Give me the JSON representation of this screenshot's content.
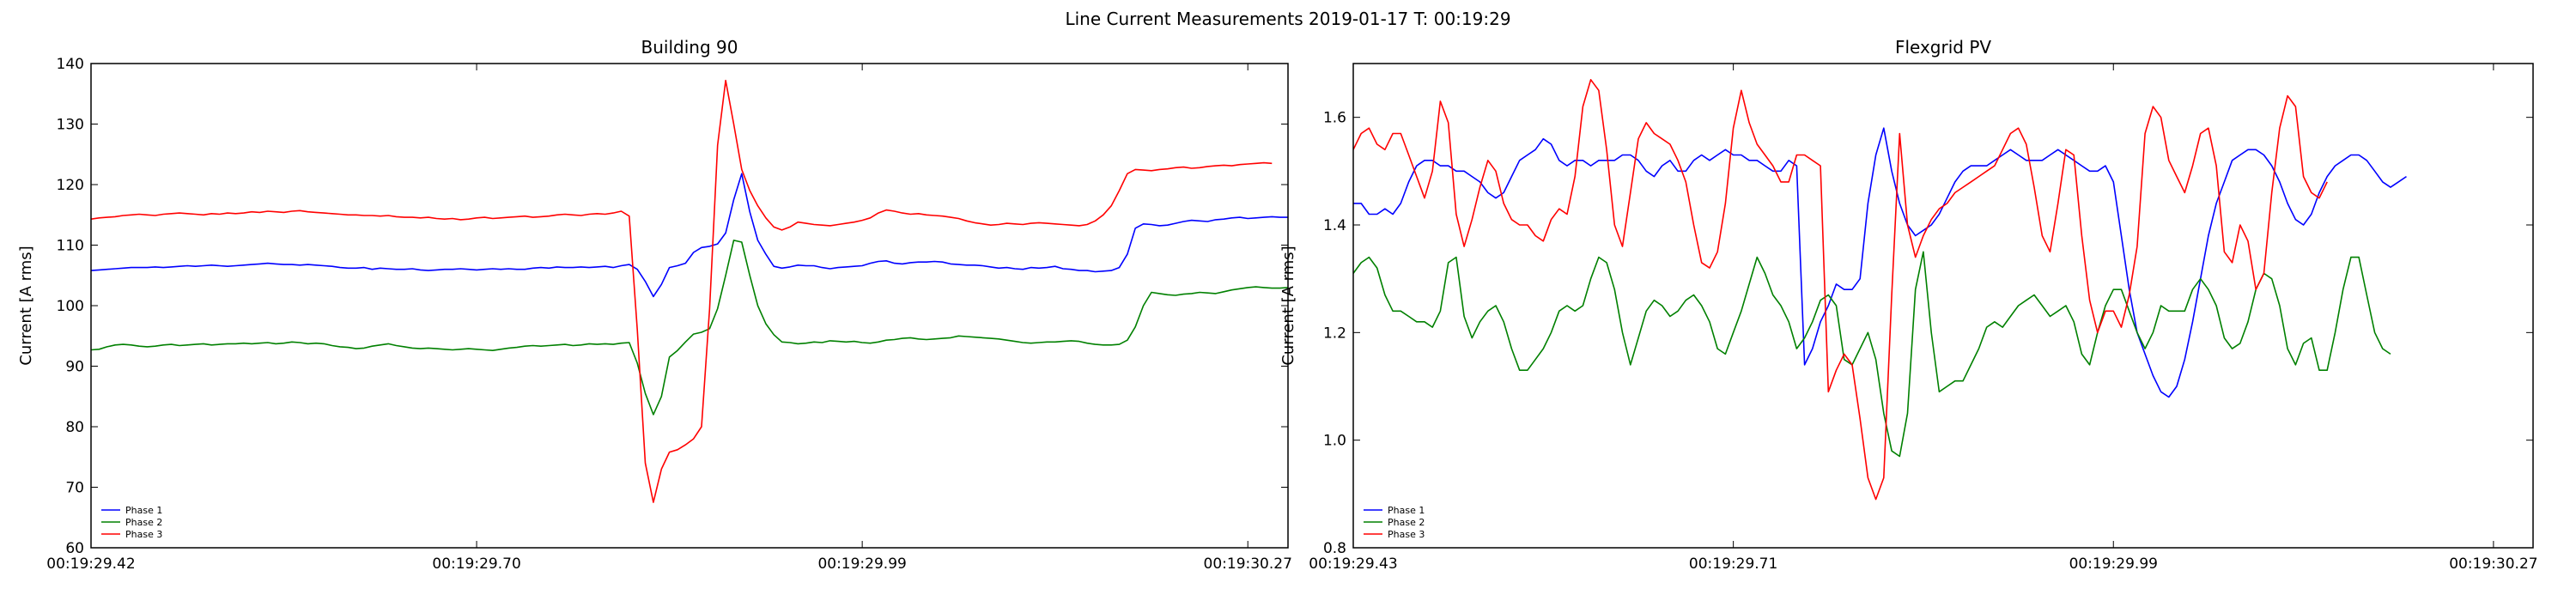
{
  "figure": {
    "suptitle": "Line Current Measurements 2019-01-17 T: 00:19:29"
  },
  "colors": {
    "phase1": "#0000ff",
    "phase2": "#008000",
    "phase3": "#ff0000",
    "axes": "#000000"
  },
  "chart_data": [
    {
      "type": "line",
      "title": "Building 90",
      "xlabel": "",
      "ylabel": "Current [A rms]",
      "ylim": [
        60,
        140
      ],
      "yticks": [
        60,
        70,
        80,
        90,
        100,
        110,
        120,
        130,
        140
      ],
      "x_range": [
        0,
        149
      ],
      "xtick_positions": [
        0,
        48,
        96,
        144
      ],
      "xtick_labels": [
        "00:19:29.42",
        "00:19:29.70",
        "00:19:29.99",
        "00:19:30.27"
      ],
      "grid": false,
      "legend": "lower-left",
      "series": [
        {
          "name": "Phase 1",
          "color": "#0000ff",
          "values": [
            105.8,
            105.9,
            106.0,
            106.1,
            106.2,
            106.3,
            106.3,
            106.3,
            106.4,
            106.3,
            106.4,
            106.5,
            106.6,
            106.5,
            106.6,
            106.7,
            106.6,
            106.5,
            106.6,
            106.7,
            106.8,
            106.9,
            107.0,
            106.9,
            106.8,
            106.8,
            106.7,
            106.8,
            106.7,
            106.6,
            106.5,
            106.3,
            106.2,
            106.2,
            106.3,
            106.0,
            106.2,
            106.1,
            106.0,
            106.0,
            106.1,
            105.9,
            105.8,
            105.9,
            106.0,
            106.0,
            106.1,
            106.0,
            105.9,
            106.0,
            106.1,
            106.0,
            106.1,
            106.0,
            106.0,
            106.2,
            106.3,
            106.2,
            106.4,
            106.3,
            106.3,
            106.4,
            106.3,
            106.4,
            106.5,
            106.3,
            106.6,
            106.8,
            106.0,
            104.0,
            101.5,
            103.5,
            106.3,
            106.6,
            107.0,
            108.8,
            109.6,
            109.8,
            110.2,
            112.0,
            117.5,
            121.8,
            115.5,
            110.8,
            108.5,
            106.5,
            106.2,
            106.4,
            106.7,
            106.6,
            106.6,
            106.3,
            106.1,
            106.3,
            106.4,
            106.5,
            106.6,
            107.0,
            107.3,
            107.4,
            107.0,
            106.9,
            107.1,
            107.2,
            107.2,
            107.3,
            107.2,
            106.9,
            106.8,
            106.7,
            106.7,
            106.6,
            106.4,
            106.2,
            106.3,
            106.1,
            106.0,
            106.3,
            106.2,
            106.3,
            106.5,
            106.1,
            106.0,
            105.8,
            105.8,
            105.6,
            105.7,
            105.8,
            106.3,
            108.5,
            112.8,
            113.5,
            113.4,
            113.2,
            113.3,
            113.6,
            113.9,
            114.1,
            114.0,
            113.9,
            114.2,
            114.3,
            114.5,
            114.6,
            114.4,
            114.5,
            114.6,
            114.7,
            114.6,
            114.6
          ]
        },
        {
          "name": "Phase 2",
          "color": "#008000",
          "values": [
            92.7,
            92.8,
            93.2,
            93.5,
            93.6,
            93.5,
            93.3,
            93.2,
            93.3,
            93.5,
            93.6,
            93.4,
            93.5,
            93.6,
            93.7,
            93.5,
            93.6,
            93.7,
            93.7,
            93.8,
            93.7,
            93.8,
            93.9,
            93.7,
            93.8,
            94.0,
            93.9,
            93.7,
            93.8,
            93.7,
            93.4,
            93.2,
            93.1,
            92.9,
            93.0,
            93.3,
            93.5,
            93.7,
            93.4,
            93.2,
            93.0,
            92.9,
            93.0,
            92.9,
            92.8,
            92.7,
            92.8,
            92.9,
            92.8,
            92.7,
            92.6,
            92.8,
            93.0,
            93.1,
            93.3,
            93.4,
            93.3,
            93.4,
            93.5,
            93.6,
            93.4,
            93.5,
            93.7,
            93.6,
            93.7,
            93.6,
            93.8,
            93.9,
            90.5,
            85.5,
            82.0,
            85.0,
            91.5,
            92.6,
            94.0,
            95.3,
            95.6,
            96.2,
            99.5,
            105.0,
            110.8,
            110.5,
            105.0,
            100.0,
            97.0,
            95.2,
            94.0,
            93.9,
            93.7,
            93.8,
            94.0,
            93.9,
            94.2,
            94.1,
            94.0,
            94.1,
            93.9,
            93.8,
            94.0,
            94.3,
            94.4,
            94.6,
            94.7,
            94.5,
            94.4,
            94.5,
            94.6,
            94.7,
            95.0,
            94.9,
            94.8,
            94.7,
            94.6,
            94.5,
            94.3,
            94.1,
            93.9,
            93.8,
            93.9,
            94.0,
            94.0,
            94.1,
            94.2,
            94.1,
            93.8,
            93.6,
            93.5,
            93.5,
            93.6,
            94.3,
            96.5,
            100.0,
            102.2,
            102.0,
            101.8,
            101.7,
            101.9,
            102.0,
            102.2,
            102.1,
            102.0,
            102.3,
            102.6,
            102.8,
            103.0,
            103.1,
            103.0,
            102.9,
            102.9,
            103.0
          ]
        },
        {
          "name": "Phase 3",
          "color": "#ff0000",
          "values": [
            114.3,
            114.5,
            114.6,
            114.7,
            114.9,
            115.0,
            115.1,
            115.0,
            114.9,
            115.1,
            115.2,
            115.3,
            115.2,
            115.1,
            115.0,
            115.2,
            115.1,
            115.3,
            115.2,
            115.3,
            115.5,
            115.4,
            115.6,
            115.5,
            115.4,
            115.6,
            115.7,
            115.5,
            115.4,
            115.3,
            115.2,
            115.1,
            115.0,
            115.0,
            114.9,
            114.9,
            114.8,
            114.9,
            114.7,
            114.6,
            114.6,
            114.5,
            114.6,
            114.4,
            114.3,
            114.4,
            114.2,
            114.3,
            114.5,
            114.6,
            114.4,
            114.5,
            114.6,
            114.7,
            114.8,
            114.6,
            114.7,
            114.8,
            115.0,
            115.1,
            115.0,
            114.9,
            115.1,
            115.2,
            115.1,
            115.3,
            115.6,
            114.8,
            96.0,
            74.0,
            67.5,
            73.0,
            75.8,
            76.2,
            77.0,
            78.0,
            80.0,
            99.5,
            126.5,
            137.2,
            130.0,
            122.5,
            119.0,
            116.5,
            114.5,
            113.0,
            112.5,
            113.0,
            113.8,
            113.6,
            113.4,
            113.3,
            113.2,
            113.4,
            113.6,
            113.8,
            114.1,
            114.5,
            115.3,
            115.8,
            115.6,
            115.3,
            115.1,
            115.2,
            115.0,
            114.9,
            114.8,
            114.6,
            114.4,
            114.0,
            113.7,
            113.5,
            113.3,
            113.4,
            113.6,
            113.5,
            113.4,
            113.6,
            113.7,
            113.6,
            113.5,
            113.4,
            113.3,
            113.2,
            113.4,
            114.0,
            115.0,
            116.5,
            119.0,
            121.8,
            122.5,
            122.4,
            122.3,
            122.5,
            122.6,
            122.8,
            122.9,
            122.7,
            122.8,
            123.0,
            123.1,
            123.2,
            123.1,
            123.3,
            123.4,
            123.5,
            123.6,
            123.5
          ]
        }
      ]
    },
    {
      "type": "line",
      "title": "Flexgrid PV",
      "xlabel": "",
      "ylabel": "Current [A rms]",
      "ylim": [
        0.8,
        1.7
      ],
      "yticks": [
        0.8,
        1.0,
        1.2,
        1.4,
        1.6
      ],
      "ytick_labels": [
        "0.8",
        "1.0",
        "1.2",
        "1.4",
        "1.6"
      ],
      "x_range": [
        0,
        149
      ],
      "xtick_positions": [
        0,
        48,
        96,
        144
      ],
      "xtick_labels": [
        "00:19:29.43",
        "00:19:29.71",
        "00:19:29.99",
        "00:19:30.27"
      ],
      "grid": false,
      "legend": "lower-left",
      "series": [
        {
          "name": "Phase 1",
          "color": "#0000ff",
          "values": [
            1.44,
            1.44,
            1.42,
            1.42,
            1.43,
            1.42,
            1.44,
            1.48,
            1.51,
            1.52,
            1.52,
            1.51,
            1.51,
            1.5,
            1.5,
            1.49,
            1.48,
            1.46,
            1.45,
            1.46,
            1.49,
            1.52,
            1.53,
            1.54,
            1.56,
            1.55,
            1.52,
            1.51,
            1.52,
            1.52,
            1.51,
            1.52,
            1.52,
            1.52,
            1.53,
            1.53,
            1.52,
            1.5,
            1.49,
            1.51,
            1.52,
            1.5,
            1.5,
            1.52,
            1.53,
            1.52,
            1.53,
            1.54,
            1.53,
            1.53,
            1.52,
            1.52,
            1.51,
            1.5,
            1.5,
            1.52,
            1.51,
            1.14,
            1.17,
            1.22,
            1.25,
            1.29,
            1.28,
            1.28,
            1.3,
            1.44,
            1.53,
            1.58,
            1.5,
            1.44,
            1.4,
            1.38,
            1.39,
            1.4,
            1.42,
            1.45,
            1.48,
            1.5,
            1.51,
            1.51,
            1.51,
            1.52,
            1.53,
            1.54,
            1.53,
            1.52,
            1.52,
            1.52,
            1.53,
            1.54,
            1.53,
            1.52,
            1.51,
            1.5,
            1.5,
            1.51,
            1.48,
            1.38,
            1.28,
            1.2,
            1.16,
            1.12,
            1.09,
            1.08,
            1.1,
            1.15,
            1.22,
            1.3,
            1.38,
            1.44,
            1.48,
            1.52,
            1.53,
            1.54,
            1.54,
            1.53,
            1.51,
            1.48,
            1.44,
            1.41,
            1.4,
            1.42,
            1.46,
            1.49,
            1.51,
            1.52,
            1.53,
            1.53,
            1.52,
            1.5,
            1.48,
            1.47,
            1.48,
            1.49
          ]
        },
        {
          "name": "Phase 2",
          "color": "#008000",
          "values": [
            1.31,
            1.33,
            1.34,
            1.32,
            1.27,
            1.24,
            1.24,
            1.23,
            1.22,
            1.22,
            1.21,
            1.24,
            1.33,
            1.34,
            1.23,
            1.19,
            1.22,
            1.24,
            1.25,
            1.22,
            1.17,
            1.13,
            1.13,
            1.15,
            1.17,
            1.2,
            1.24,
            1.25,
            1.24,
            1.25,
            1.3,
            1.34,
            1.33,
            1.28,
            1.2,
            1.14,
            1.19,
            1.24,
            1.26,
            1.25,
            1.23,
            1.24,
            1.26,
            1.27,
            1.25,
            1.22,
            1.17,
            1.16,
            1.2,
            1.24,
            1.29,
            1.34,
            1.31,
            1.27,
            1.25,
            1.22,
            1.17,
            1.19,
            1.22,
            1.26,
            1.27,
            1.25,
            1.15,
            1.14,
            1.17,
            1.2,
            1.15,
            1.05,
            0.98,
            0.97,
            1.05,
            1.28,
            1.35,
            1.2,
            1.09,
            1.1,
            1.11,
            1.11,
            1.14,
            1.17,
            1.21,
            1.22,
            1.21,
            1.23,
            1.25,
            1.26,
            1.27,
            1.25,
            1.23,
            1.24,
            1.25,
            1.22,
            1.16,
            1.14,
            1.2,
            1.25,
            1.28,
            1.28,
            1.24,
            1.2,
            1.17,
            1.2,
            1.25,
            1.24,
            1.24,
            1.24,
            1.28,
            1.3,
            1.28,
            1.25,
            1.19,
            1.17,
            1.18,
            1.22,
            1.28,
            1.31,
            1.3,
            1.25,
            1.17,
            1.14,
            1.18,
            1.19,
            1.13,
            1.13,
            1.2,
            1.28,
            1.34,
            1.34,
            1.27,
            1.2,
            1.17,
            1.16
          ]
        },
        {
          "name": "Phase 3",
          "color": "#ff0000",
          "values": [
            1.54,
            1.57,
            1.58,
            1.55,
            1.54,
            1.57,
            1.57,
            1.53,
            1.49,
            1.45,
            1.5,
            1.63,
            1.59,
            1.42,
            1.36,
            1.41,
            1.47,
            1.52,
            1.5,
            1.44,
            1.41,
            1.4,
            1.4,
            1.38,
            1.37,
            1.41,
            1.43,
            1.42,
            1.49,
            1.62,
            1.67,
            1.65,
            1.54,
            1.4,
            1.36,
            1.46,
            1.56,
            1.59,
            1.57,
            1.56,
            1.55,
            1.52,
            1.48,
            1.4,
            1.33,
            1.32,
            1.35,
            1.44,
            1.58,
            1.65,
            1.59,
            1.55,
            1.53,
            1.51,
            1.48,
            1.48,
            1.53,
            1.53,
            1.52,
            1.51,
            1.09,
            1.13,
            1.16,
            1.14,
            1.04,
            0.93,
            0.89,
            0.93,
            1.27,
            1.57,
            1.4,
            1.34,
            1.38,
            1.41,
            1.43,
            1.44,
            1.46,
            1.47,
            1.48,
            1.49,
            1.5,
            1.51,
            1.54,
            1.57,
            1.58,
            1.55,
            1.47,
            1.38,
            1.35,
            1.44,
            1.54,
            1.53,
            1.38,
            1.26,
            1.2,
            1.24,
            1.24,
            1.21,
            1.27,
            1.36,
            1.57,
            1.62,
            1.6,
            1.52,
            1.49,
            1.46,
            1.51,
            1.57,
            1.58,
            1.51,
            1.35,
            1.33,
            1.4,
            1.37,
            1.28,
            1.31,
            1.46,
            1.58,
            1.64,
            1.62,
            1.49,
            1.46,
            1.45,
            1.48
          ]
        }
      ]
    }
  ]
}
